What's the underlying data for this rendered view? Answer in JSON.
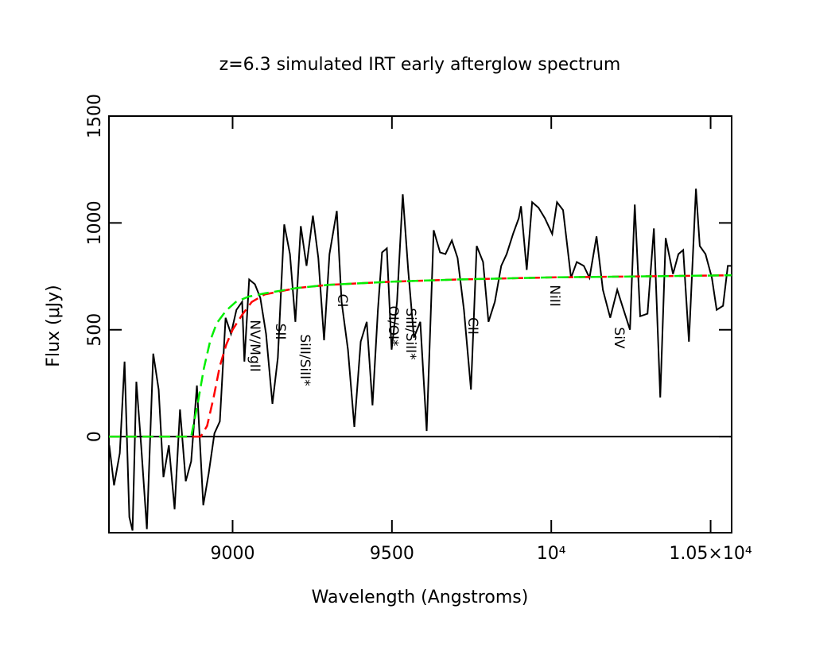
{
  "chart_data": {
    "type": "line",
    "title": "z=6.3 simulated IRT early afterglow spectrum",
    "xlabel": "Wavelength (Angstroms)",
    "ylabel": "Flux (μJy)",
    "xlim": [
      8612,
      10566
    ],
    "ylim": [
      -450,
      1500
    ],
    "xticks": [
      9000,
      9500,
      {
        "value": 10000,
        "label": "10⁴"
      },
      {
        "value": 10500,
        "label": "1.05×10⁴"
      }
    ],
    "yticks": [
      0,
      500,
      1000,
      1500
    ],
    "series": [
      {
        "color": "#000000",
        "dash": false,
        "x": [
          8613,
          8628,
          8646,
          8661,
          8676,
          8686,
          8698,
          8713,
          8731,
          8751,
          8768,
          8783,
          8800,
          8818,
          8835,
          8853,
          8870,
          8888,
          8908,
          8925,
          8943,
          8960,
          8978,
          8995,
          9012,
          9030,
          9037,
          9052,
          9070,
          9087,
          9105,
          9125,
          9142,
          9162,
          9180,
          9197,
          9214,
          9232,
          9252,
          9269,
          9287,
          9304,
          9327,
          9342,
          9362,
          9382,
          9402,
          9421,
          9439,
          9456,
          9469,
          9484,
          9499,
          9516,
          9534,
          9551,
          9569,
          9589,
          9609,
          9631,
          9651,
          9668,
          9688,
          9706,
          9726,
          9748,
          9766,
          9786,
          9803,
          9823,
          9843,
          9860,
          9880,
          9898,
          9905,
          9923,
          9940,
          9960,
          9980,
          10003,
          10018,
          10037,
          10062,
          10080,
          10102,
          10120,
          10142,
          10162,
          10185,
          10207,
          10227,
          10247,
          10262,
          10279,
          10302,
          10322,
          10342,
          10359,
          10382,
          10399,
          10414,
          10432,
          10454,
          10466,
          10484,
          10504,
          10519,
          10539,
          10554,
          10566
        ],
        "values": [
          -41,
          -228,
          -78,
          351,
          -377,
          -440,
          257,
          -41,
          -433,
          388,
          220,
          -190,
          -41,
          -340,
          127,
          -209,
          -116,
          239,
          -321,
          -172,
          15,
          71,
          556,
          481,
          593,
          631,
          351,
          735,
          713,
          649,
          481,
          153,
          369,
          993,
          854,
          537,
          985,
          799,
          1034,
          836,
          451,
          854,
          1056,
          631,
          407,
          45,
          444,
          537,
          146,
          593,
          862,
          881,
          407,
          631,
          1134,
          780,
          463,
          537,
          26,
          966,
          862,
          854,
          918,
          836,
          593,
          220,
          892,
          817,
          537,
          631,
          799,
          854,
          948,
          1022,
          1078,
          780,
          1097,
          1071,
          1022,
          948,
          1097,
          1060,
          743,
          817,
          799,
          743,
          937,
          687,
          556,
          687,
          593,
          500,
          1086,
          563,
          575,
          974,
          183,
          929,
          761,
          854,
          873,
          444,
          1160,
          892,
          854,
          743,
          593,
          612,
          799,
          799
        ]
      },
      {
        "color": "#ff0000",
        "dash": true,
        "x": [
          8612,
          8900,
          8920,
          8940,
          8960,
          8980,
          9000,
          9030,
          9060,
          9100,
          9200,
          9300,
          9500,
          9700,
          10000,
          10300,
          10566
        ],
        "values": [
          0,
          0,
          50,
          180,
          330,
          430,
          500,
          570,
          630,
          665,
          695,
          710,
          725,
          735,
          745,
          750,
          755
        ]
      },
      {
        "color": "#00ee00",
        "dash": true,
        "x": [
          8612,
          8870,
          8890,
          8910,
          8930,
          8950,
          8980,
          9010,
          9050,
          9100,
          9200,
          9300,
          9500,
          9700,
          10000,
          10300,
          10566
        ],
        "values": [
          0,
          0,
          150,
          320,
          450,
          530,
          590,
          630,
          655,
          670,
          695,
          710,
          725,
          735,
          745,
          750,
          755
        ]
      }
    ],
    "annotations": [
      "NV/MgII",
      "SII",
      "SiII/SiII*",
      "CI",
      "OI/OI*",
      "SiII/SiII*",
      "CII",
      "NiII",
      "SiV"
    ]
  }
}
